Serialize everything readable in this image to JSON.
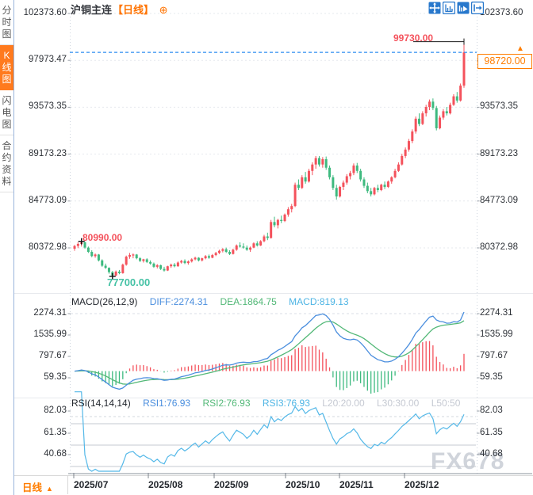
{
  "window": {
    "symbol": "沪铜主连",
    "period": "【日线】"
  },
  "icons": {
    "circle_plus": "⊕",
    "up_triangle": "▲"
  },
  "sidebar": {
    "tabs": [
      {
        "label": "分时图",
        "selected": false
      },
      {
        "label": "K线图",
        "selected": true
      },
      {
        "label": "闪电图",
        "selected": false
      },
      {
        "label": "合约资料",
        "selected": false
      }
    ]
  },
  "toolbar": {
    "icons": [
      "pan-icon",
      "axis-scale-icon",
      "chart-playback-icon",
      "exit-right-icon"
    ]
  },
  "colors": {
    "up": "#f4525c",
    "down": "#3eba7f",
    "accent_orange": "#ff7d00",
    "diff_blue": "#4a8ede",
    "dea_green": "#52b877",
    "rsi_cyan": "#54b8e8",
    "price_line_blue": "#2e8ef0",
    "muted_gray": "#c5c9d2",
    "grid": "#e6e9ee",
    "axis_dot": "#cfd6df",
    "tick": "#9aa0a8"
  },
  "axes": {
    "price_labels": [
      "102373.60",
      "97973.47",
      "93573.35",
      "89173.23",
      "84773.09",
      "80372.98"
    ],
    "macd_labels": [
      "2274.31",
      "1535.99",
      "797.67",
      "59.35"
    ],
    "rsi_labels": [
      "82.03",
      "61.35",
      "40.68"
    ],
    "x_labels": [
      "2025/07",
      "2025/08",
      "2025/09",
      "2025/10",
      "2025/11",
      "2025/12"
    ]
  },
  "macd_row": {
    "name": "MACD(26,12,9)",
    "diff": "DIFF:2274.31",
    "dea": "DEA:1864.75",
    "macd": "MACD:819.13"
  },
  "rsi_row": {
    "name": "RSI(14,14,14)",
    "rsi1": "RSI1:76.93",
    "rsi2": "RSI2:76.93",
    "rsi3": "RSI3:76.93",
    "l20": "L20:20.00",
    "l30": "L30:30.00",
    "l50": "L50:50"
  },
  "annotations": {
    "high_price": "99730.00",
    "last_price": "98720.00",
    "early_high": "80990.00",
    "early_low": "77700.00"
  },
  "bottom": {
    "period_selector": "日线",
    "watermark": "FX678"
  },
  "chart_data": {
    "type": "candlestick",
    "title": "沪铜主连 日线",
    "price_ticks": [
      102373.6,
      97973.47,
      93573.35,
      89173.23,
      84773.09,
      80372.98
    ],
    "macd_ticks": [
      2274.31,
      1535.99,
      797.67,
      59.35
    ],
    "rsi_ticks": [
      82.03,
      61.35,
      40.68
    ],
    "month_xs": [
      93,
      187,
      270,
      360,
      428,
      510
    ],
    "last_price": 98720.0,
    "high_marker": {
      "price": 99730,
      "index": 113
    },
    "early_high_marker": {
      "price": 80990,
      "index": 2
    },
    "early_low_marker": {
      "price": 77700,
      "index": 11
    },
    "indicators": {
      "macd_params": [
        26,
        12,
        9
      ],
      "rsi_params": [
        14,
        14,
        14
      ],
      "diff": 2274.31,
      "dea": 1864.75,
      "macd": 819.13,
      "rsi": 76.93
    },
    "candles": [
      [
        80300,
        80650,
        80100,
        80550
      ],
      [
        80550,
        80900,
        80350,
        80750
      ],
      [
        80750,
        80990,
        80500,
        80900
      ],
      [
        80900,
        80950,
        80300,
        80400
      ],
      [
        80400,
        80500,
        79900,
        80000
      ],
      [
        80000,
        80150,
        79500,
        79600
      ],
      [
        79600,
        79850,
        79450,
        79750
      ],
      [
        79750,
        79800,
        79100,
        79200
      ],
      [
        79200,
        79300,
        78600,
        78700
      ],
      [
        78700,
        78900,
        78400,
        78500
      ],
      [
        78500,
        78550,
        77950,
        78100
      ],
      [
        78100,
        78200,
        77700,
        77780
      ],
      [
        77780,
        78250,
        77720,
        78150
      ],
      [
        78150,
        78300,
        77900,
        78000
      ],
      [
        78000,
        78900,
        77950,
        78800
      ],
      [
        78800,
        79650,
        78700,
        79550
      ],
      [
        79550,
        79900,
        79350,
        79700
      ],
      [
        79700,
        79850,
        79400,
        79750
      ],
      [
        79750,
        79800,
        79300,
        79400
      ],
      [
        79400,
        79500,
        79050,
        79150
      ],
      [
        79150,
        79350,
        79000,
        79300
      ],
      [
        79300,
        79400,
        78950,
        79050
      ],
      [
        79050,
        79200,
        78800,
        78900
      ],
      [
        78900,
        79000,
        78500,
        78600
      ],
      [
        78600,
        78850,
        78450,
        78750
      ],
      [
        78750,
        78800,
        78300,
        78400
      ],
      [
        78400,
        78600,
        78150,
        78250
      ],
      [
        78250,
        78700,
        78200,
        78650
      ],
      [
        78650,
        78900,
        78500,
        78800
      ],
      [
        78800,
        78950,
        78550,
        78650
      ],
      [
        78650,
        79100,
        78600,
        79000
      ],
      [
        79000,
        79250,
        78900,
        79150
      ],
      [
        79150,
        79300,
        78850,
        78950
      ],
      [
        78950,
        79200,
        78800,
        79100
      ],
      [
        79100,
        79400,
        79000,
        79300
      ],
      [
        79300,
        79550,
        79200,
        79450
      ],
      [
        79450,
        79500,
        79100,
        79200
      ],
      [
        79200,
        79450,
        79100,
        79400
      ],
      [
        79400,
        79700,
        79300,
        79600
      ],
      [
        79600,
        79750,
        79350,
        79450
      ],
      [
        79450,
        79800,
        79400,
        79700
      ],
      [
        79700,
        80000,
        79600,
        79900
      ],
      [
        79900,
        80200,
        79800,
        80100
      ],
      [
        80100,
        80350,
        79950,
        80250
      ],
      [
        80250,
        80400,
        79900,
        80000
      ],
      [
        80000,
        80150,
        79700,
        79800
      ],
      [
        79800,
        80300,
        79750,
        80200
      ],
      [
        80200,
        80700,
        80100,
        80600
      ],
      [
        80600,
        80900,
        80400,
        80500
      ],
      [
        80500,
        80800,
        80300,
        80400
      ],
      [
        80400,
        80600,
        80100,
        80200
      ],
      [
        80200,
        80500,
        80000,
        80400
      ],
      [
        80400,
        80900,
        80350,
        80800
      ],
      [
        80800,
        81000,
        80500,
        80600
      ],
      [
        80600,
        81100,
        80550,
        81000
      ],
      [
        81000,
        81600,
        80900,
        81450
      ],
      [
        81450,
        81800,
        81100,
        81300
      ],
      [
        81300,
        83000,
        81250,
        82800
      ],
      [
        82800,
        83300,
        82300,
        82500
      ],
      [
        82500,
        83100,
        82200,
        83000
      ],
      [
        83000,
        83400,
        82700,
        82900
      ],
      [
        82900,
        83600,
        82800,
        83500
      ],
      [
        83500,
        84200,
        83300,
        84000
      ],
      [
        84000,
        84500,
        83700,
        84300
      ],
      [
        84300,
        86500,
        84200,
        86300
      ],
      [
        86300,
        86800,
        85800,
        86000
      ],
      [
        86000,
        87200,
        85900,
        87000
      ],
      [
        87000,
        87500,
        86400,
        86600
      ],
      [
        86600,
        87800,
        86500,
        87600
      ],
      [
        87600,
        88400,
        87200,
        88200
      ],
      [
        88200,
        89000,
        87800,
        88800
      ],
      [
        88800,
        88990,
        88000,
        88200
      ],
      [
        88200,
        88900,
        87900,
        88700
      ],
      [
        88700,
        88950,
        87700,
        87900
      ],
      [
        87900,
        88100,
        86800,
        87000
      ],
      [
        87000,
        87200,
        85800,
        86000
      ],
      [
        86000,
        86300,
        84900,
        85200
      ],
      [
        85200,
        86200,
        85100,
        86100
      ],
      [
        86100,
        86700,
        85800,
        86500
      ],
      [
        86500,
        87300,
        86300,
        87100
      ],
      [
        87100,
        87600,
        86800,
        87400
      ],
      [
        87400,
        88300,
        87200,
        88100
      ],
      [
        88100,
        88350,
        87400,
        87600
      ],
      [
        87600,
        87800,
        86600,
        86800
      ],
      [
        86800,
        87000,
        86000,
        86200
      ],
      [
        86200,
        86500,
        85500,
        85700
      ],
      [
        85700,
        86000,
        85200,
        85400
      ],
      [
        85400,
        86100,
        85300,
        86000
      ],
      [
        86000,
        86300,
        85600,
        85800
      ],
      [
        85800,
        86400,
        85700,
        86300
      ],
      [
        86300,
        86600,
        85900,
        86100
      ],
      [
        86100,
        86700,
        86000,
        86600
      ],
      [
        86600,
        87100,
        86400,
        87000
      ],
      [
        87000,
        87800,
        86900,
        87600
      ],
      [
        87600,
        88400,
        87500,
        88200
      ],
      [
        88200,
        89200,
        88100,
        89000
      ],
      [
        89000,
        89800,
        88800,
        89600
      ],
      [
        89600,
        90600,
        89400,
        90400
      ],
      [
        90400,
        91500,
        90200,
        91300
      ],
      [
        91300,
        92700,
        91100,
        92500
      ],
      [
        92500,
        93000,
        91800,
        92000
      ],
      [
        92000,
        93200,
        91900,
        93000
      ],
      [
        93000,
        93800,
        92700,
        93600
      ],
      [
        93600,
        94300,
        93300,
        94100
      ],
      [
        94100,
        94400,
        93300,
        93500
      ],
      [
        93500,
        93700,
        91400,
        91600
      ],
      [
        91600,
        92800,
        91500,
        92600
      ],
      [
        92600,
        93400,
        92400,
        93200
      ],
      [
        93200,
        93600,
        92800,
        93000
      ],
      [
        93000,
        94000,
        92900,
        93800
      ],
      [
        93800,
        94800,
        93700,
        94600
      ],
      [
        94600,
        95000,
        94000,
        94200
      ],
      [
        94200,
        95800,
        94100,
        95600
      ],
      [
        95600,
        99730,
        95400,
        98720
      ]
    ]
  }
}
